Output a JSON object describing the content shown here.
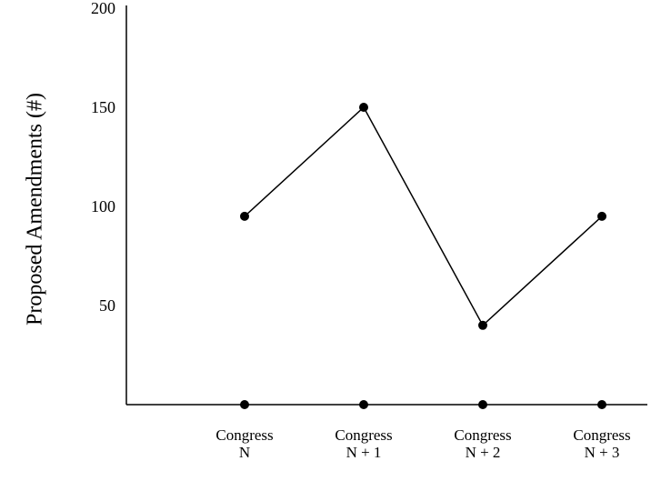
{
  "chart_data": {
    "type": "line",
    "categories": [
      [
        "Congress",
        "N"
      ],
      [
        "Congress",
        "N + 1"
      ],
      [
        "Congress",
        "N + 2"
      ],
      [
        "Congress",
        "N + 3"
      ]
    ],
    "values": [
      95,
      150,
      40,
      95
    ],
    "baseline_markers": true,
    "title": "",
    "xlabel": "",
    "ylabel": "Proposed Amendments (#)",
    "ylim": [
      0,
      200
    ],
    "yticks": [
      {
        "value": 50,
        "label": "50"
      },
      {
        "value": 100,
        "label": "100"
      },
      {
        "value": 150,
        "label": "150"
      },
      {
        "value": 200,
        "label": "200"
      }
    ],
    "grid": false,
    "line_color": "#000000",
    "marker_color": "#000000"
  }
}
